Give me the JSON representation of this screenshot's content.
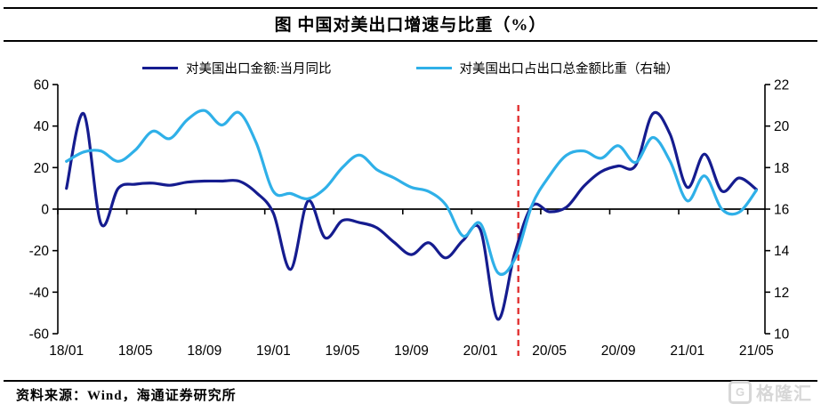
{
  "title": "图  中国对美出口增速与比重（%）",
  "source": "资料来源：Wind，海通证券研究所",
  "watermark": {
    "logo": "G",
    "text": "格隆汇"
  },
  "legend": [
    {
      "label": "对美国出口金额:当月同比",
      "color": "#151c8f"
    },
    {
      "label": "对美国出口占出口总金额比重（右轴）",
      "color": "#2fb0e8"
    }
  ],
  "chart_data": {
    "type": "line",
    "title": "图  中国对美出口增速与比重（%）",
    "x": [
      "18/01",
      "18/02",
      "18/03",
      "18/04",
      "18/05",
      "18/06",
      "18/07",
      "18/08",
      "18/09",
      "18/10",
      "18/11",
      "18/12",
      "19/01",
      "19/02",
      "19/03",
      "19/04",
      "19/05",
      "19/06",
      "19/07",
      "19/08",
      "19/09",
      "19/10",
      "19/11",
      "19/12",
      "20/01",
      "20/02",
      "20/03",
      "20/04",
      "20/05",
      "20/06",
      "20/07",
      "20/08",
      "20/09",
      "20/10",
      "20/11",
      "20/12",
      "21/01",
      "21/02",
      "21/03",
      "21/04",
      "21/05"
    ],
    "x_tick_labels": [
      "18/01",
      "18/05",
      "18/09",
      "19/01",
      "19/05",
      "19/09",
      "20/01",
      "20/05",
      "20/09",
      "21/01",
      "21/05"
    ],
    "series": [
      {
        "name": "对美国出口金额:当月同比",
        "axis": "left",
        "color": "#151c8f",
        "values": [
          10,
          46,
          -7,
          10,
          12,
          12.5,
          11.5,
          13,
          13.5,
          13.5,
          13.5,
          8,
          -2,
          -29,
          3.9,
          -13.8,
          -5.5,
          -6.5,
          -9,
          -16,
          -21.9,
          -16.2,
          -23.5,
          -15,
          -10,
          -53,
          -21,
          1.5,
          -1.3,
          1,
          11,
          18,
          20.8,
          21,
          46,
          36,
          10.5,
          26.5,
          8.7,
          15,
          9.5
        ]
      },
      {
        "name": "对美国出口占出口总金额比重（右轴）",
        "axis": "right",
        "color": "#2fb0e8",
        "values": [
          18.3,
          18.75,
          18.8,
          18.3,
          18.85,
          19.75,
          19.4,
          20.3,
          20.75,
          20.05,
          20.65,
          19.2,
          16.85,
          16.75,
          16.5,
          17,
          18,
          18.6,
          17.9,
          17.5,
          17.05,
          16.85,
          16.2,
          14.7,
          15.3,
          12.95,
          13.6,
          16.2,
          17.6,
          18.6,
          18.8,
          18.45,
          19.05,
          18.25,
          19.45,
          18.3,
          16.4,
          17.6,
          16,
          15.85,
          16.9
        ]
      }
    ],
    "left_axis": {
      "min": -60,
      "max": 60,
      "step": 20,
      "ticks": [
        60,
        40,
        20,
        0,
        -20,
        -40,
        -60
      ]
    },
    "right_axis": {
      "min": 10,
      "max": 22,
      "step": 2,
      "ticks": [
        22,
        20,
        18,
        16,
        14,
        12,
        10
      ]
    },
    "marker_line": {
      "x_label": "20/03",
      "x_index": 26.2,
      "color": "#e23333",
      "style": "dashed"
    },
    "grid": false,
    "legend_position": "top"
  }
}
